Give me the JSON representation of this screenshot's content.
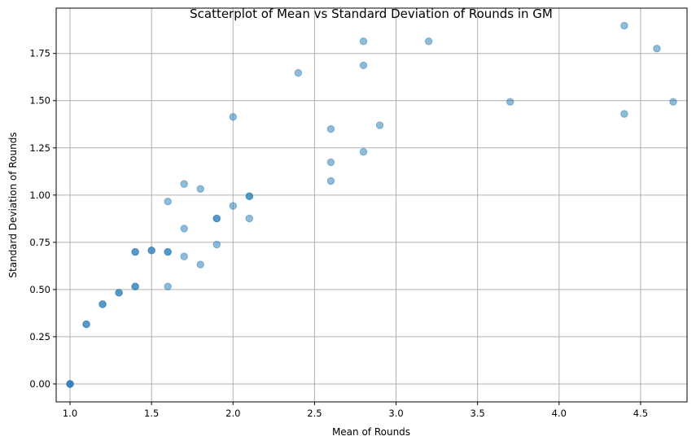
{
  "chart_data": {
    "type": "scatter",
    "title": "Scatterplot of Mean vs Standard Deviation of Rounds in GM",
    "xlabel": "Mean of Rounds",
    "ylabel": "Standard Deviation of Rounds",
    "xlim": [
      0.915,
      4.785
    ],
    "ylim": [
      -0.095,
      1.99
    ],
    "x_ticks": [
      1.0,
      1.5,
      2.0,
      2.5,
      3.0,
      3.5,
      4.0,
      4.5
    ],
    "x_tick_labels": [
      "1.0",
      "1.5",
      "2.0",
      "2.5",
      "3.0",
      "3.5",
      "4.0",
      "4.5"
    ],
    "y_ticks": [
      0.0,
      0.25,
      0.5,
      0.75,
      1.0,
      1.25,
      1.5,
      1.75
    ],
    "y_tick_labels": [
      "0.00",
      "0.25",
      "0.50",
      "0.75",
      "1.00",
      "1.25",
      "1.50",
      "1.75"
    ],
    "grid": true,
    "legend": "none",
    "marker_color": "#1f77b4",
    "marker_alpha": 0.5,
    "x": [
      1.0,
      1.0,
      1.0,
      1.1,
      1.1,
      1.2,
      1.2,
      1.3,
      1.3,
      1.4,
      1.4,
      1.4,
      1.4,
      1.5,
      1.5,
      1.6,
      1.6,
      1.6,
      1.6,
      1.7,
      1.7,
      1.7,
      1.8,
      1.8,
      1.9,
      1.9,
      1.9,
      2.0,
      2.0,
      2.1,
      2.1,
      2.1,
      2.4,
      2.6,
      2.6,
      2.6,
      2.8,
      2.8,
      2.8,
      2.9,
      3.2,
      3.7,
      4.4,
      4.4,
      4.6,
      4.7
    ],
    "y": [
      0.0,
      0.0,
      0.0,
      0.316,
      0.316,
      0.422,
      0.422,
      0.483,
      0.483,
      0.516,
      0.516,
      0.699,
      0.699,
      0.707,
      0.707,
      0.516,
      0.699,
      0.699,
      0.966,
      0.675,
      0.823,
      1.059,
      0.632,
      1.033,
      0.738,
      0.876,
      0.876,
      0.943,
      1.414,
      0.876,
      0.994,
      0.994,
      1.647,
      1.075,
      1.174,
      1.35,
      1.229,
      1.687,
      1.814,
      1.37,
      1.814,
      1.494,
      1.43,
      1.897,
      1.776,
      1.494
    ]
  }
}
